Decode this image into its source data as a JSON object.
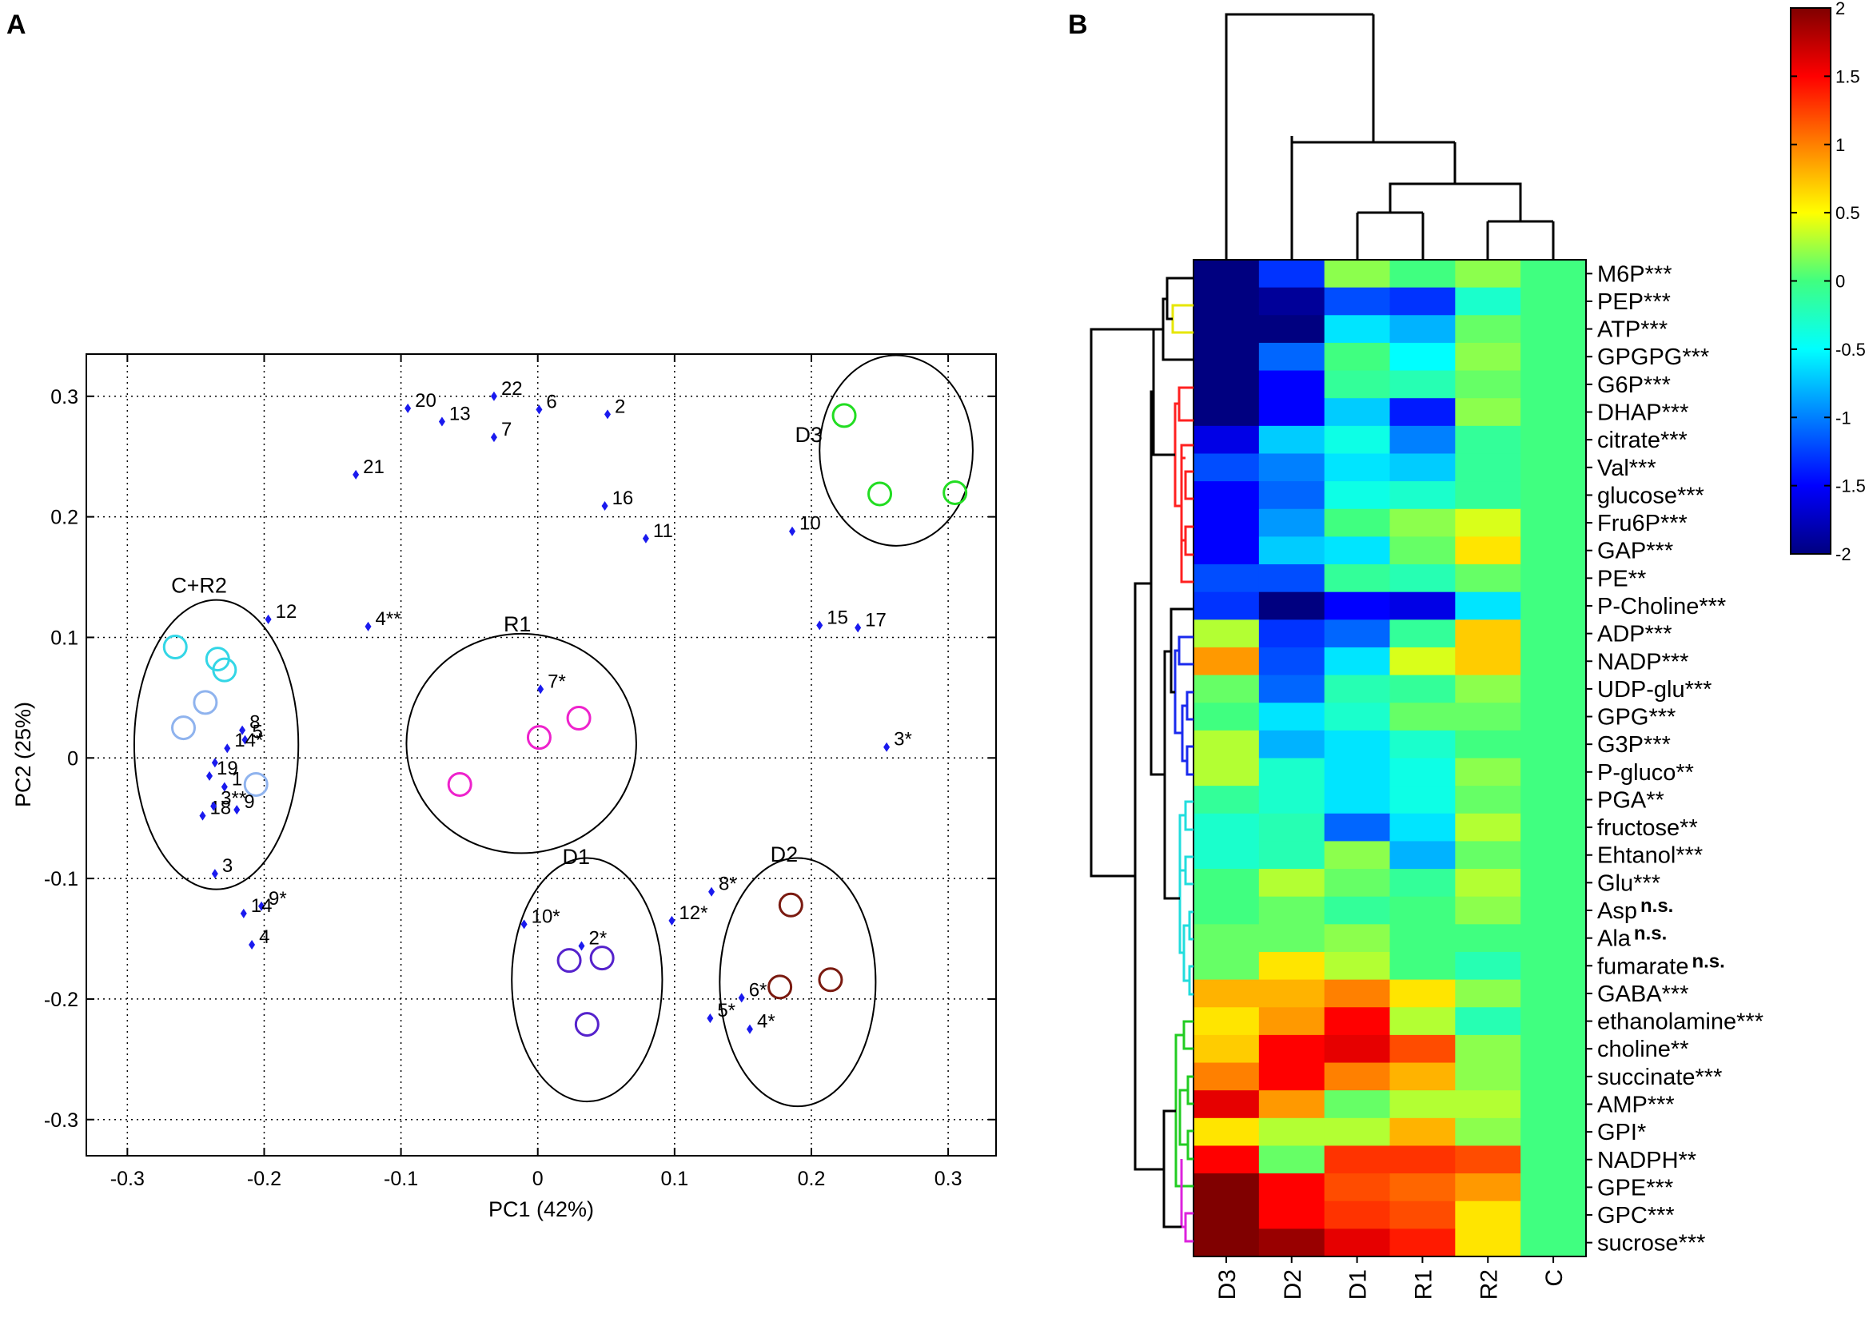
{
  "panel_labels": {
    "a": "A",
    "b": "B"
  },
  "chart_data": [
    {
      "type": "scatter",
      "panel": "A",
      "xlabel": "PC1 (42%)",
      "ylabel": "PC2 (25%)",
      "xlim": [
        -0.33,
        0.335
      ],
      "ylim": [
        -0.33,
        0.335
      ],
      "xticks": [
        -0.3,
        -0.2,
        -0.1,
        0,
        0.1,
        0.2,
        0.3
      ],
      "xtick_labels": [
        "-0.3",
        "-0.2",
        "-0.1",
        "0",
        "0.1",
        "0.2",
        "0.3"
      ],
      "yticks": [
        -0.3,
        -0.2,
        -0.1,
        0,
        0.1,
        0.2,
        0.3
      ],
      "ytick_labels": [
        "-0.3",
        "-0.2",
        "-0.1",
        "0",
        "0.1",
        "0.2",
        "0.3"
      ],
      "grid": true,
      "points": [
        {
          "label": "22",
          "x": -0.032,
          "y": 0.3
        },
        {
          "label": "20",
          "x": -0.095,
          "y": 0.29
        },
        {
          "label": "6",
          "x": 0.001,
          "y": 0.289
        },
        {
          "label": "2",
          "x": 0.051,
          "y": 0.285
        },
        {
          "label": "13",
          "x": -0.07,
          "y": 0.279
        },
        {
          "label": "7",
          "x": -0.032,
          "y": 0.266
        },
        {
          "label": "21",
          "x": -0.133,
          "y": 0.235
        },
        {
          "label": "16",
          "x": 0.049,
          "y": 0.209
        },
        {
          "label": "11",
          "x": 0.079,
          "y": 0.182
        },
        {
          "label": "10",
          "x": 0.186,
          "y": 0.188
        },
        {
          "label": "12",
          "x": -0.197,
          "y": 0.115
        },
        {
          "label": "4**",
          "x": -0.124,
          "y": 0.109
        },
        {
          "label": "15",
          "x": 0.206,
          "y": 0.11
        },
        {
          "label": "17",
          "x": 0.234,
          "y": 0.108
        },
        {
          "label": "7*",
          "x": 0.002,
          "y": 0.057
        },
        {
          "label": "8",
          "x": -0.216,
          "y": 0.023
        },
        {
          "label": "5",
          "x": -0.214,
          "y": 0.015
        },
        {
          "label": "14*",
          "x": -0.227,
          "y": 0.008
        },
        {
          "label": "3*",
          "x": 0.255,
          "y": 0.009
        },
        {
          "label": "",
          "x": -0.236,
          "y": -0.004
        },
        {
          "label": "19",
          "x": -0.24,
          "y": -0.015
        },
        {
          "label": "1",
          "x": -0.229,
          "y": -0.024
        },
        {
          "label": "18",
          "x": -0.245,
          "y": -0.048
        },
        {
          "label": "3**",
          "x": -0.237,
          "y": -0.04
        },
        {
          "label": "9",
          "x": -0.22,
          "y": -0.043
        },
        {
          "label": "3",
          "x": -0.236,
          "y": -0.096
        },
        {
          "label": "9*",
          "x": -0.202,
          "y": -0.123
        },
        {
          "label": "14",
          "x": -0.215,
          "y": -0.129
        },
        {
          "label": "4",
          "x": -0.209,
          "y": -0.155
        },
        {
          "label": "8*",
          "x": 0.127,
          "y": -0.111
        },
        {
          "label": "12*",
          "x": 0.098,
          "y": -0.135
        },
        {
          "label": "10*",
          "x": -0.01,
          "y": -0.138
        },
        {
          "label": "2*",
          "x": 0.032,
          "y": -0.156
        },
        {
          "label": "6*",
          "x": 0.149,
          "y": -0.199
        },
        {
          "label": "5*",
          "x": 0.126,
          "y": -0.216
        },
        {
          "label": "4*",
          "x": 0.155,
          "y": -0.225
        }
      ],
      "circles": [
        {
          "x": -0.265,
          "y": 0.092,
          "color": "#33d6e6"
        },
        {
          "x": -0.234,
          "y": 0.082,
          "color": "#33d6e6"
        },
        {
          "x": -0.229,
          "y": 0.073,
          "color": "#33d6e6"
        },
        {
          "x": -0.243,
          "y": 0.046,
          "color": "#8fb3ee"
        },
        {
          "x": -0.259,
          "y": 0.025,
          "color": "#8fb3ee"
        },
        {
          "x": -0.206,
          "y": -0.022,
          "color": "#8fb3ee"
        },
        {
          "x": 0.03,
          "y": 0.033,
          "color": "#ee22cc"
        },
        {
          "x": 0.001,
          "y": 0.017,
          "color": "#ee22cc"
        },
        {
          "x": -0.057,
          "y": -0.022,
          "color": "#ee22cc"
        },
        {
          "x": 0.023,
          "y": -0.168,
          "color": "#5522cc"
        },
        {
          "x": 0.047,
          "y": -0.166,
          "color": "#5522cc"
        },
        {
          "x": 0.036,
          "y": -0.221,
          "color": "#5522cc"
        },
        {
          "x": 0.185,
          "y": -0.122,
          "color": "#7a1a10"
        },
        {
          "x": 0.177,
          "y": -0.19,
          "color": "#7a1a10"
        },
        {
          "x": 0.214,
          "y": -0.184,
          "color": "#7a1a10"
        },
        {
          "x": 0.224,
          "y": 0.284,
          "color": "#22dd22"
        },
        {
          "x": 0.25,
          "y": 0.219,
          "color": "#22dd22"
        },
        {
          "x": 0.305,
          "y": 0.22,
          "color": "#22dd22"
        }
      ],
      "groups": [
        {
          "name": "C+R2",
          "cx": -0.235,
          "cy": 0.011,
          "rx": 0.06,
          "ry": 0.12
        },
        {
          "name": "R1",
          "cx": -0.012,
          "cy": 0.012,
          "rx": 0.084,
          "ry": 0.091
        },
        {
          "name": "D1",
          "cx": 0.036,
          "cy": -0.184,
          "rx": 0.055,
          "ry": 0.101
        },
        {
          "name": "D2",
          "cx": 0.19,
          "cy": -0.186,
          "rx": 0.057,
          "ry": 0.103
        },
        {
          "name": "D3",
          "cx": 0.262,
          "cy": 0.255,
          "rx": 0.056,
          "ry": 0.079
        }
      ],
      "group_label_positions": {
        "C+R2": [
          -0.268,
          0.137
        ],
        "R1": [
          -0.025,
          0.105
        ],
        "D1": [
          0.018,
          -0.088
        ],
        "D2": [
          0.17,
          -0.086
        ],
        "D3": [
          0.188,
          0.262
        ]
      }
    },
    {
      "type": "heatmap",
      "panel": "B",
      "columns": [
        "D3",
        "D2",
        "D1",
        "R1",
        "R2",
        "C"
      ],
      "rows": [
        {
          "name": "M6P",
          "sig": "***",
          "values": [
            -2.0,
            -1.3,
            0.2,
            0.0,
            0.2,
            0.0
          ]
        },
        {
          "name": "PEP",
          "sig": "***",
          "values": [
            -2.0,
            -1.9,
            -1.2,
            -1.3,
            -0.3,
            0.0
          ]
        },
        {
          "name": "ATP",
          "sig": "***",
          "values": [
            -2.0,
            -2.0,
            -0.6,
            -0.8,
            0.1,
            0.0
          ]
        },
        {
          "name": "GPGPG",
          "sig": "***",
          "values": [
            -2.0,
            -1.1,
            0.0,
            -0.5,
            0.2,
            0.0
          ]
        },
        {
          "name": "G6P",
          "sig": "***",
          "values": [
            -2.0,
            -1.5,
            -0.1,
            -0.2,
            0.1,
            0.0
          ]
        },
        {
          "name": "DHAP",
          "sig": "***",
          "values": [
            -2.0,
            -1.5,
            -0.7,
            -1.4,
            0.2,
            0.0
          ]
        },
        {
          "name": "citrate",
          "sig": "***",
          "values": [
            -1.6,
            -0.7,
            -0.4,
            -1.0,
            -0.1,
            0.0
          ]
        },
        {
          "name": "Val",
          "sig": "***",
          "values": [
            -1.2,
            -1.0,
            -0.6,
            -0.7,
            -0.1,
            0.0
          ]
        },
        {
          "name": "glucose",
          "sig": "***",
          "values": [
            -1.5,
            -1.1,
            -0.4,
            -0.3,
            -0.1,
            0.0
          ]
        },
        {
          "name": "Fru6P",
          "sig": "***",
          "values": [
            -1.5,
            -0.9,
            0.0,
            0.2,
            0.4,
            0.0
          ]
        },
        {
          "name": "GAP",
          "sig": "***",
          "values": [
            -1.5,
            -0.7,
            -0.6,
            0.1,
            0.6,
            0.0
          ]
        },
        {
          "name": "PE",
          "sig": "**",
          "values": [
            -1.2,
            -1.2,
            -0.1,
            -0.2,
            0.1,
            0.0
          ]
        },
        {
          "name": "P-Choline",
          "sig": "***",
          "values": [
            -1.3,
            -2.0,
            -1.5,
            -1.6,
            -0.6,
            0.0
          ]
        },
        {
          "name": "ADP",
          "sig": "***",
          "values": [
            0.3,
            -1.3,
            -1.1,
            -0.1,
            0.7,
            0.0
          ]
        },
        {
          "name": "NADP",
          "sig": "***",
          "values": [
            0.9,
            -1.2,
            -0.6,
            0.4,
            0.7,
            0.0
          ]
        },
        {
          "name": "UDP-glu",
          "sig": "***",
          "values": [
            0.1,
            -1.1,
            -0.2,
            -0.1,
            0.2,
            0.0
          ]
        },
        {
          "name": "GPG",
          "sig": "***",
          "values": [
            0.0,
            -0.6,
            -0.3,
            0.1,
            0.1,
            0.0
          ]
        },
        {
          "name": "G3P",
          "sig": "***",
          "values": [
            0.3,
            -0.8,
            -0.6,
            -0.3,
            0.0,
            0.0
          ]
        },
        {
          "name": "P-gluco",
          "sig": "**",
          "values": [
            0.3,
            -0.3,
            -0.6,
            -0.4,
            0.2,
            0.0
          ]
        },
        {
          "name": "PGA",
          "sig": "**",
          "values": [
            -0.1,
            -0.3,
            -0.6,
            -0.4,
            0.1,
            0.0
          ]
        },
        {
          "name": "fructose",
          "sig": "**",
          "values": [
            -0.3,
            -0.2,
            -1.1,
            -0.6,
            0.3,
            0.0
          ]
        },
        {
          "name": "Ehtanol",
          "sig": "***",
          "values": [
            -0.3,
            -0.2,
            0.2,
            -0.8,
            0.1,
            0.0
          ]
        },
        {
          "name": "Glu",
          "sig": "***",
          "values": [
            0.0,
            0.3,
            0.1,
            -0.1,
            0.3,
            0.0
          ]
        },
        {
          "name": "Asp",
          "sig": "n.s.",
          "values": [
            0.0,
            0.1,
            -0.1,
            0.0,
            0.2,
            0.0
          ]
        },
        {
          "name": "Ala",
          "sig": "n.s.",
          "values": [
            0.1,
            0.1,
            0.2,
            0.0,
            0.0,
            0.0
          ]
        },
        {
          "name": "fumarate",
          "sig": "n.s.",
          "values": [
            0.1,
            0.6,
            0.3,
            0.0,
            -0.2,
            0.0
          ]
        },
        {
          "name": "GABA",
          "sig": "***",
          "values": [
            0.8,
            0.8,
            1.0,
            0.6,
            0.2,
            0.0
          ]
        },
        {
          "name": "ethanolamine",
          "sig": "***",
          "values": [
            0.6,
            0.9,
            1.5,
            0.3,
            -0.2,
            0.0
          ]
        },
        {
          "name": "choline",
          "sig": "**",
          "values": [
            0.7,
            1.5,
            1.6,
            1.2,
            0.2,
            0.0
          ]
        },
        {
          "name": "succinate",
          "sig": "***",
          "values": [
            1.0,
            1.5,
            1.0,
            0.8,
            0.2,
            0.0
          ]
        },
        {
          "name": "AMP",
          "sig": "***",
          "values": [
            1.6,
            0.9,
            0.1,
            0.3,
            0.3,
            0.0
          ]
        },
        {
          "name": "GPI",
          "sig": "*",
          "values": [
            0.6,
            0.3,
            0.3,
            0.8,
            0.2,
            0.0
          ]
        },
        {
          "name": "NADPH",
          "sig": "**",
          "values": [
            1.5,
            0.1,
            1.3,
            1.3,
            1.2,
            0.0
          ]
        },
        {
          "name": "GPE",
          "sig": "***",
          "values": [
            2.0,
            1.5,
            1.2,
            1.1,
            0.9,
            0.0
          ]
        },
        {
          "name": "GPC",
          "sig": "***",
          "values": [
            2.0,
            1.5,
            1.3,
            1.2,
            0.6,
            0.0
          ]
        },
        {
          "name": "sucrose",
          "sig": "***",
          "values": [
            2.0,
            1.9,
            1.6,
            1.4,
            0.6,
            0.0
          ]
        }
      ],
      "colorbar": {
        "min": -2,
        "max": 2,
        "ticks": [
          2,
          1.5,
          1,
          0.5,
          0,
          -0.5,
          -1,
          -1.5,
          -2
        ],
        "tick_labels": [
          "2",
          "1.5",
          "1",
          "0.5",
          "0",
          "-0.5",
          "-1",
          "-1.5",
          "-2"
        ]
      },
      "row_dendrogram_colors": {
        "yellow": "#e6e600",
        "red": "#ff2020",
        "blue": "#1a2aee",
        "cyan": "#22dddd",
        "green": "#22cc22",
        "magenta": "#dd22dd"
      }
    }
  ]
}
